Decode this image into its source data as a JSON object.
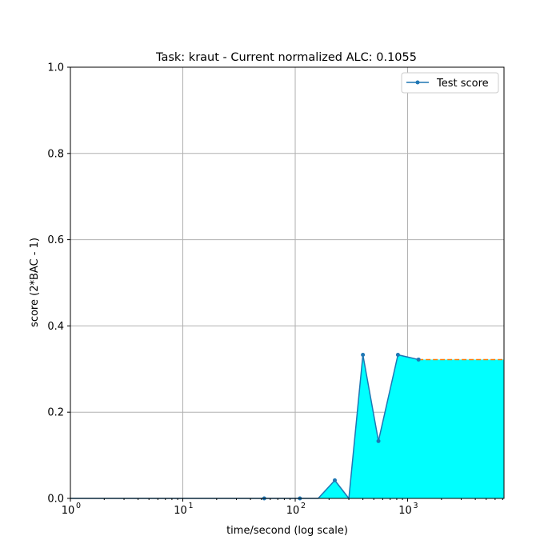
{
  "chart_data": {
    "type": "line",
    "title": "Task: kraut - Current normalized ALC: 0.1055",
    "xlabel": "time/second (log scale)",
    "ylabel": "score (2*BAC - 1)",
    "x_scale": "log",
    "xlim": [
      1,
      7200
    ],
    "ylim": [
      0,
      1
    ],
    "x_ticks": [
      1,
      10,
      100,
      1000
    ],
    "x_tick_labels": [
      {
        "base": "10",
        "exp": "0"
      },
      {
        "base": "10",
        "exp": "1"
      },
      {
        "base": "10",
        "exp": "2"
      },
      {
        "base": "10",
        "exp": "3"
      }
    ],
    "y_ticks": [
      0,
      0.2,
      0.4,
      0.6,
      0.8,
      1.0
    ],
    "y_tick_labels": [
      "0.0",
      "0.2",
      "0.4",
      "0.6",
      "0.8",
      "1.0"
    ],
    "grid": true,
    "legend": {
      "position": "top-right",
      "entries": [
        "Test score"
      ]
    },
    "series": [
      {
        "name": "Test score",
        "color": "#1f77b4",
        "fill_color": "#00ffff",
        "step_points": [
          [
            1,
            0
          ],
          [
            53,
            0
          ],
          [
            110,
            0
          ],
          [
            160,
            0
          ],
          [
            225,
            0.042
          ],
          [
            300,
            0
          ],
          [
            400,
            0.333
          ],
          [
            550,
            0.133
          ],
          [
            820,
            0.333
          ],
          [
            1250,
            0.322
          ]
        ],
        "marker_points": [
          [
            53,
            0
          ],
          [
            110,
            0
          ],
          [
            225,
            0.042
          ],
          [
            400,
            0.333
          ],
          [
            550,
            0.133
          ],
          [
            820,
            0.333
          ],
          [
            1250,
            0.322
          ]
        ],
        "extension": {
          "from": 1250,
          "to": 7200,
          "value": 0.322,
          "color": "#ff7f0e",
          "style": "dashed"
        }
      }
    ]
  }
}
